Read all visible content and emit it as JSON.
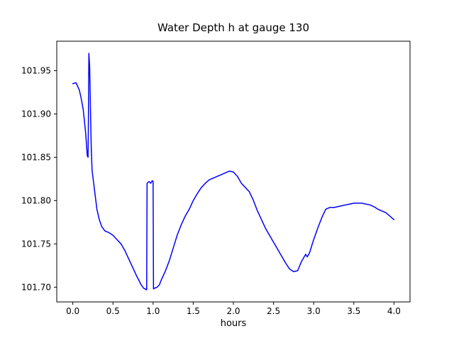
{
  "chart_data": {
    "type": "line",
    "title": "Water Depth h at gauge 130",
    "xlabel": "hours",
    "ylabel": "",
    "line_color": "#0000ff",
    "axes_color": "#000000",
    "background_color": "#ffffff",
    "grid": false,
    "legend": "none",
    "xlim": [
      -0.2,
      4.2
    ],
    "ylim": [
      101.683,
      101.984
    ],
    "xticks": {
      "values": [
        0.0,
        0.5,
        1.0,
        1.5,
        2.0,
        2.5,
        3.0,
        3.5,
        4.0
      ],
      "labels": [
        "0.0",
        "0.5",
        "1.0",
        "1.5",
        "2.0",
        "2.5",
        "3.0",
        "3.5",
        "4.0"
      ]
    },
    "yticks": {
      "values": [
        101.7,
        101.75,
        101.8,
        101.85,
        101.9,
        101.95
      ],
      "labels": [
        "101.70",
        "101.75",
        "101.80",
        "101.85",
        "101.90",
        "101.95"
      ]
    },
    "series": [
      {
        "name": "water-depth-h",
        "x": [
          0.0,
          0.04,
          0.08,
          0.1,
          0.13,
          0.16,
          0.18,
          0.19,
          0.195,
          0.2,
          0.21,
          0.22,
          0.23,
          0.24,
          0.26,
          0.28,
          0.3,
          0.33,
          0.36,
          0.4,
          0.45,
          0.5,
          0.55,
          0.6,
          0.65,
          0.7,
          0.75,
          0.8,
          0.85,
          0.88,
          0.9,
          0.92,
          0.925,
          0.95,
          0.97,
          0.99,
          1.0,
          1.005,
          1.02,
          1.05,
          1.08,
          1.1,
          1.15,
          1.2,
          1.25,
          1.3,
          1.35,
          1.4,
          1.45,
          1.5,
          1.55,
          1.6,
          1.65,
          1.7,
          1.75,
          1.8,
          1.85,
          1.9,
          1.95,
          2.0,
          2.05,
          2.1,
          2.15,
          2.2,
          2.25,
          2.3,
          2.35,
          2.4,
          2.45,
          2.5,
          2.55,
          2.6,
          2.65,
          2.7,
          2.75,
          2.8,
          2.85,
          2.9,
          2.92,
          2.95,
          3.0,
          3.05,
          3.1,
          3.15,
          3.2,
          3.25,
          3.3,
          3.35,
          3.4,
          3.45,
          3.5,
          3.55,
          3.6,
          3.65,
          3.7,
          3.75,
          3.8,
          3.85,
          3.9,
          3.95,
          4.0
        ],
        "y": [
          101.935,
          101.936,
          101.928,
          101.92,
          101.905,
          101.878,
          101.852,
          101.85,
          101.9,
          101.97,
          101.955,
          101.905,
          101.86,
          101.835,
          101.82,
          101.805,
          101.79,
          101.778,
          101.77,
          101.765,
          101.763,
          101.76,
          101.755,
          101.75,
          101.742,
          101.732,
          101.722,
          101.712,
          101.703,
          101.699,
          101.698,
          101.697,
          101.82,
          101.822,
          101.82,
          101.823,
          101.822,
          101.698,
          101.699,
          101.7,
          101.703,
          101.708,
          101.718,
          101.73,
          101.745,
          101.76,
          101.772,
          101.782,
          101.79,
          101.8,
          101.808,
          101.815,
          101.82,
          101.824,
          101.826,
          101.828,
          101.83,
          101.832,
          101.834,
          101.833,
          101.828,
          101.82,
          101.815,
          101.81,
          101.8,
          101.788,
          101.778,
          101.768,
          101.76,
          101.752,
          101.744,
          101.736,
          101.728,
          101.721,
          101.718,
          101.719,
          101.73,
          101.738,
          101.735,
          101.74,
          101.755,
          101.768,
          101.78,
          101.79,
          101.792,
          101.792,
          101.793,
          101.794,
          101.795,
          101.796,
          101.797,
          101.797,
          101.797,
          101.796,
          101.795,
          101.793,
          101.79,
          101.788,
          101.786,
          101.782,
          101.778
        ]
      }
    ]
  }
}
